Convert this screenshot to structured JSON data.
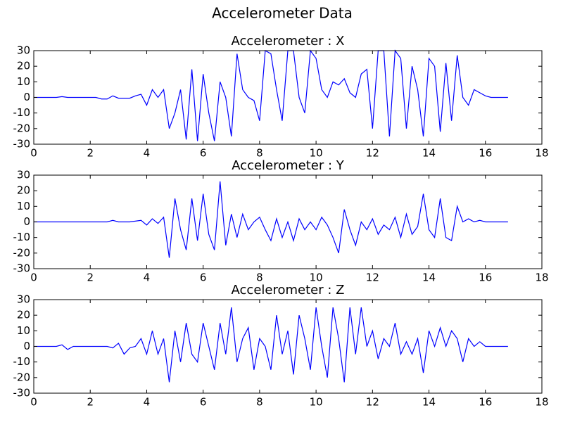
{
  "title": "Accelerometer Data",
  "chart_data": [
    {
      "type": "line",
      "title": "Accelerometer : X",
      "xlim": [
        0,
        18
      ],
      "xticks": [
        0,
        2,
        4,
        6,
        8,
        10,
        12,
        14,
        16,
        18
      ],
      "ylim": [
        -30,
        30
      ],
      "yticks": [
        -30,
        -20,
        -10,
        0,
        10,
        20,
        30
      ],
      "x": [
        0,
        0.2,
        0.4,
        0.6,
        0.8,
        1,
        1.2,
        1.4,
        1.6,
        1.8,
        2,
        2.2,
        2.4,
        2.6,
        2.8,
        3,
        3.2,
        3.4,
        3.6,
        3.8,
        4,
        4.2,
        4.4,
        4.6,
        4.8,
        5,
        5.2,
        5.4,
        5.6,
        5.8,
        6,
        6.2,
        6.4,
        6.6,
        6.8,
        7,
        7.2,
        7.4,
        7.6,
        7.8,
        8,
        8.2,
        8.4,
        8.6,
        8.8,
        9,
        9.2,
        9.4,
        9.6,
        9.8,
        10,
        10.2,
        10.4,
        10.6,
        10.8,
        11,
        11.2,
        11.4,
        11.6,
        11.8,
        12,
        12.2,
        12.4,
        12.6,
        12.8,
        13,
        13.2,
        13.4,
        13.6,
        13.8,
        14,
        14.2,
        14.4,
        14.6,
        14.8,
        15,
        15.2,
        15.4,
        15.6,
        15.8,
        16,
        16.2,
        16.4,
        16.6,
        16.8
      ],
      "series": [
        {
          "color": "#0000ff",
          "values": [
            0,
            0,
            0,
            0,
            0,
            0.5,
            0,
            0,
            0,
            0,
            0,
            0,
            -1,
            -1,
            1,
            -0.5,
            -0.5,
            -0.5,
            1,
            2,
            -5,
            5,
            0,
            5,
            -20,
            -10,
            5,
            -27,
            18,
            -28,
            15,
            -10,
            -28,
            10,
            0,
            -25,
            28,
            5,
            0,
            -2,
            -15,
            30,
            28,
            5,
            -15,
            30,
            30,
            0,
            -10,
            30,
            25,
            5,
            0,
            10,
            8,
            12,
            3,
            0,
            15,
            18,
            -20,
            30,
            30,
            -25,
            30,
            25,
            -20,
            20,
            5,
            -25,
            25,
            20,
            -22,
            22,
            -15,
            27,
            0,
            -5,
            5,
            3,
            1,
            0,
            0,
            0,
            0
          ]
        }
      ]
    },
    {
      "type": "line",
      "title": "Accelerometer : Y",
      "xlim": [
        0,
        18
      ],
      "xticks": [
        0,
        2,
        4,
        6,
        8,
        10,
        12,
        14,
        16,
        18
      ],
      "ylim": [
        -30,
        30
      ],
      "yticks": [
        -30,
        -20,
        -10,
        0,
        10,
        20,
        30
      ],
      "x": [
        0,
        0.2,
        0.4,
        0.6,
        0.8,
        1,
        1.2,
        1.4,
        1.6,
        1.8,
        2,
        2.2,
        2.4,
        2.6,
        2.8,
        3,
        3.2,
        3.4,
        3.6,
        3.8,
        4,
        4.2,
        4.4,
        4.6,
        4.8,
        5,
        5.2,
        5.4,
        5.6,
        5.8,
        6,
        6.2,
        6.4,
        6.6,
        6.8,
        7,
        7.2,
        7.4,
        7.6,
        7.8,
        8,
        8.2,
        8.4,
        8.6,
        8.8,
        9,
        9.2,
        9.4,
        9.6,
        9.8,
        10,
        10.2,
        10.4,
        10.6,
        10.8,
        11,
        11.2,
        11.4,
        11.6,
        11.8,
        12,
        12.2,
        12.4,
        12.6,
        12.8,
        13,
        13.2,
        13.4,
        13.6,
        13.8,
        14,
        14.2,
        14.4,
        14.6,
        14.8,
        15,
        15.2,
        15.4,
        15.6,
        15.8,
        16,
        16.2,
        16.4,
        16.6,
        16.8
      ],
      "series": [
        {
          "color": "#0000ff",
          "values": [
            0,
            0,
            0,
            0,
            0,
            0,
            0,
            0,
            0,
            0,
            0,
            0,
            0,
            0,
            1,
            0,
            0,
            0,
            0.5,
            1,
            -2,
            2,
            -1,
            3,
            -23,
            15,
            -5,
            -18,
            15,
            -12,
            18,
            -8,
            -18,
            26,
            -15,
            5,
            -10,
            5,
            -5,
            0,
            3,
            -5,
            -12,
            2,
            -10,
            0,
            -12,
            2,
            -5,
            0,
            -5,
            3,
            -2,
            -10,
            -20,
            8,
            -5,
            -15,
            0,
            -5,
            2,
            -8,
            -2,
            -5,
            3,
            -10,
            5,
            -8,
            -3,
            18,
            -5,
            -10,
            15,
            -10,
            -12,
            10,
            0,
            2,
            0,
            1,
            0,
            0,
            0,
            0,
            0
          ]
        }
      ]
    },
    {
      "type": "line",
      "title": "Accelerometer : Z",
      "xlim": [
        0,
        18
      ],
      "xticks": [
        0,
        2,
        4,
        6,
        8,
        10,
        12,
        14,
        16,
        18
      ],
      "ylim": [
        -30,
        30
      ],
      "yticks": [
        -30,
        -20,
        -10,
        0,
        10,
        20,
        30
      ],
      "x": [
        0,
        0.2,
        0.4,
        0.6,
        0.8,
        1,
        1.2,
        1.4,
        1.6,
        1.8,
        2,
        2.2,
        2.4,
        2.6,
        2.8,
        3,
        3.2,
        3.4,
        3.6,
        3.8,
        4,
        4.2,
        4.4,
        4.6,
        4.8,
        5,
        5.2,
        5.4,
        5.6,
        5.8,
        6,
        6.2,
        6.4,
        6.6,
        6.8,
        7,
        7.2,
        7.4,
        7.6,
        7.8,
        8,
        8.2,
        8.4,
        8.6,
        8.8,
        9,
        9.2,
        9.4,
        9.6,
        9.8,
        10,
        10.2,
        10.4,
        10.6,
        10.8,
        11,
        11.2,
        11.4,
        11.6,
        11.8,
        12,
        12.2,
        12.4,
        12.6,
        12.8,
        13,
        13.2,
        13.4,
        13.6,
        13.8,
        14,
        14.2,
        14.4,
        14.6,
        14.8,
        15,
        15.2,
        15.4,
        15.6,
        15.8,
        16,
        16.2,
        16.4,
        16.6,
        16.8
      ],
      "series": [
        {
          "color": "#0000ff",
          "values": [
            0,
            0,
            0,
            0,
            0,
            1,
            -2,
            0,
            0,
            0,
            0,
            0,
            0,
            0,
            -1,
            2,
            -5,
            -1,
            0,
            5,
            -5,
            10,
            -5,
            5,
            -23,
            10,
            -10,
            15,
            -5,
            -10,
            15,
            0,
            -15,
            15,
            -5,
            25,
            -10,
            5,
            12,
            -15,
            5,
            0,
            -15,
            20,
            -5,
            10,
            -18,
            20,
            5,
            -15,
            25,
            0,
            -20,
            25,
            5,
            -23,
            25,
            -5,
            25,
            0,
            10,
            -8,
            5,
            0,
            15,
            -5,
            3,
            -5,
            5,
            -17,
            10,
            0,
            12,
            0,
            10,
            5,
            -10,
            5,
            0,
            3,
            0,
            0,
            0,
            0,
            0
          ]
        }
      ]
    }
  ]
}
